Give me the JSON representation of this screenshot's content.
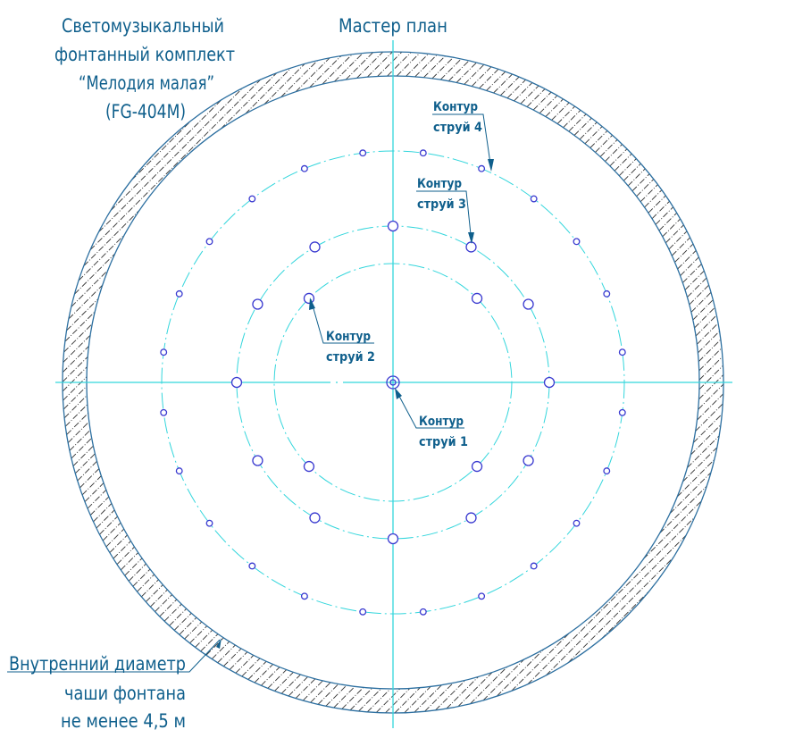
{
  "title": {
    "lines": [
      "Светомузыкальный",
      "фонтанный комплект",
      "“Мелодия малая”",
      "(FG-404M)"
    ]
  },
  "plan_title": "Мастер план",
  "contours": [
    {
      "line1": "Контур",
      "line2": "струй 1"
    },
    {
      "line1": "Контур",
      "line2": "струй 2"
    },
    {
      "line1": "Контур",
      "line2": "струй 3"
    },
    {
      "line1": "Контур",
      "line2": "струй 4"
    }
  ],
  "bowl_note": {
    "lines": [
      "Внутренний диаметр",
      "чаши фонтана",
      "не менее 4,5 м"
    ]
  },
  "colors": {
    "text": "#0f5f8c",
    "axis": "#33d6dc",
    "nozzle": "#3a3ad0",
    "bowl_outline": "#2c6fa0",
    "hatch": "#333333"
  }
}
